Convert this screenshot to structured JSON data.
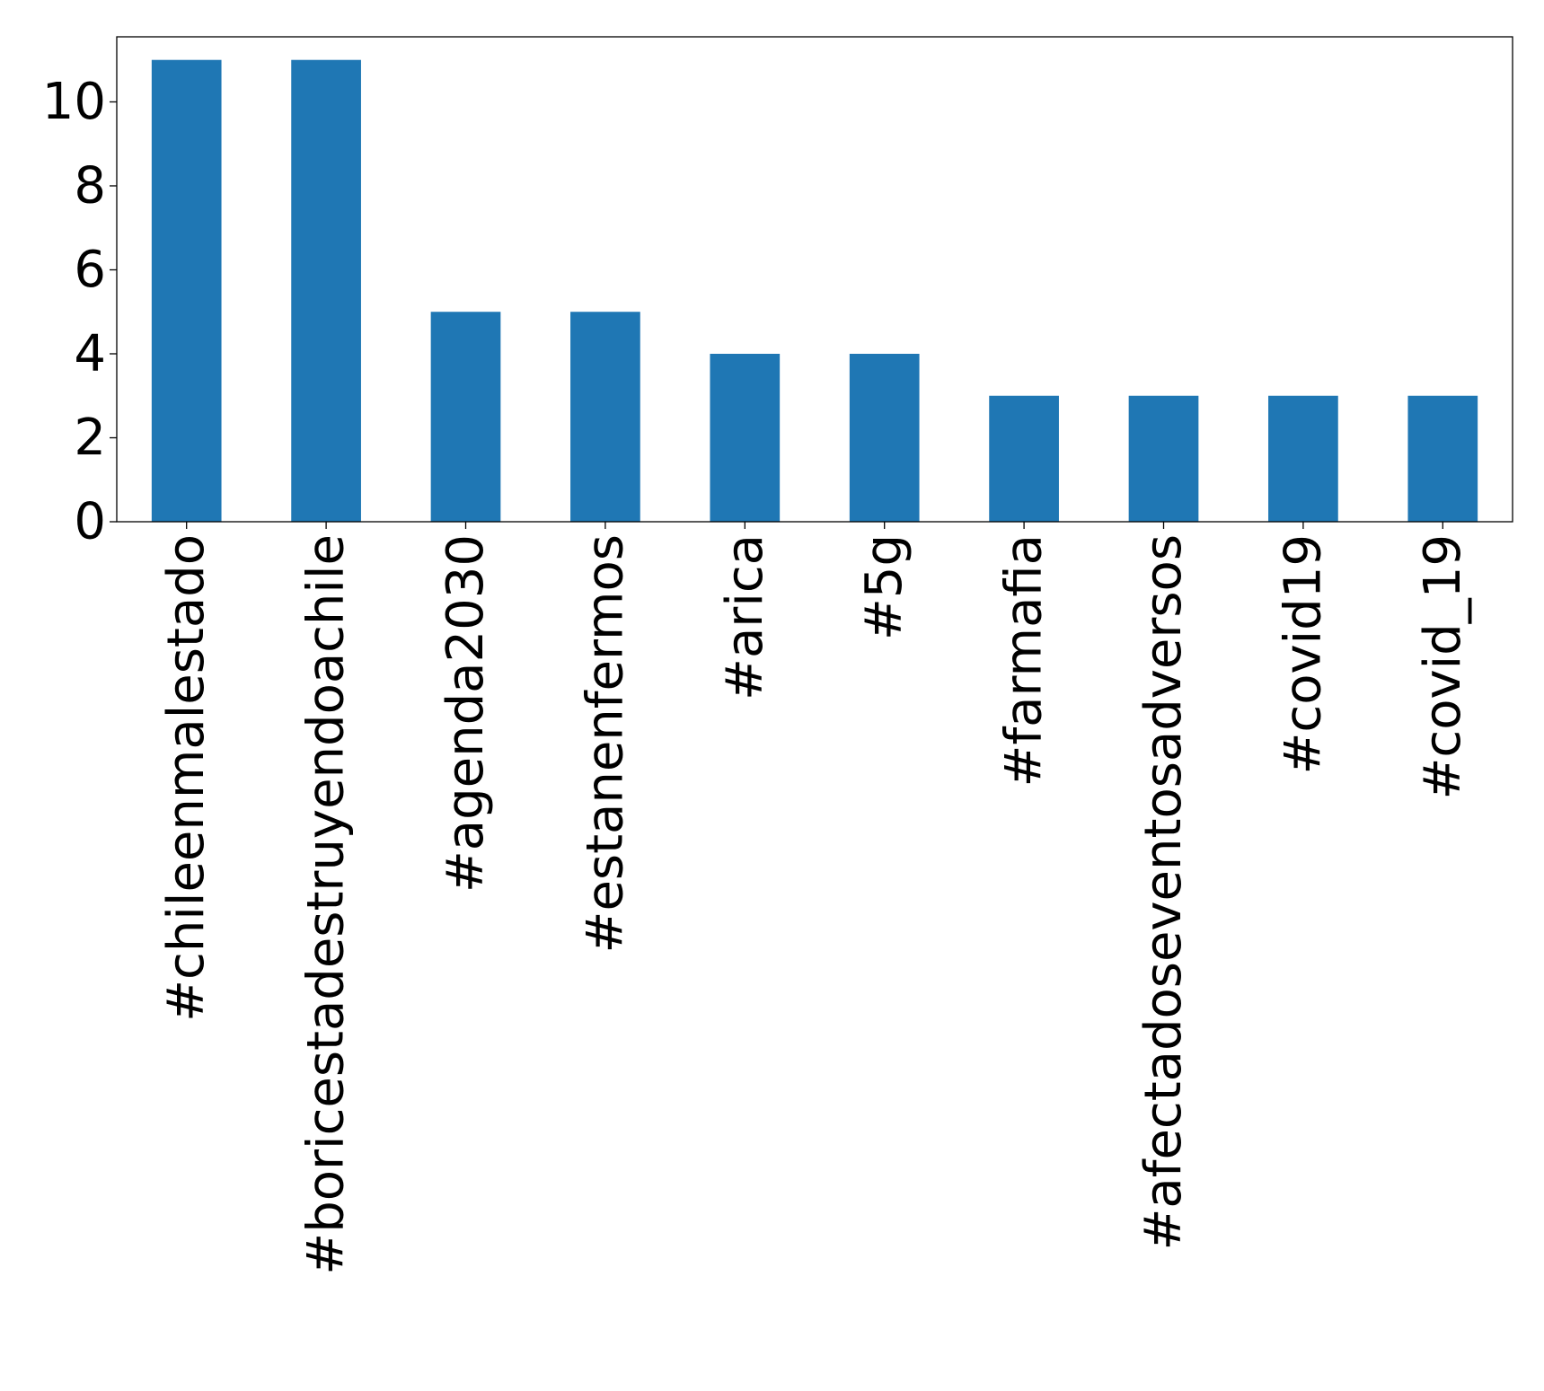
{
  "chart_data": {
    "type": "bar",
    "title": "",
    "xlabel": "",
    "ylabel": "",
    "categories": [
      "#chileenmalestado",
      "#boricestadestruyendoachile",
      "#agenda2030",
      "#estanenfermos",
      "#arica",
      "#5g",
      "#farmafia",
      "#afectadoseventosadversos",
      "#covid19",
      "#covid_19"
    ],
    "values": [
      11,
      11,
      5,
      5,
      4,
      4,
      3,
      3,
      3,
      3
    ],
    "ylim": [
      0,
      11.55
    ],
    "yticks": [
      0,
      2,
      4,
      6,
      8,
      10
    ],
    "bar_color": "#1f77b4",
    "grid": false,
    "legend": "none"
  }
}
